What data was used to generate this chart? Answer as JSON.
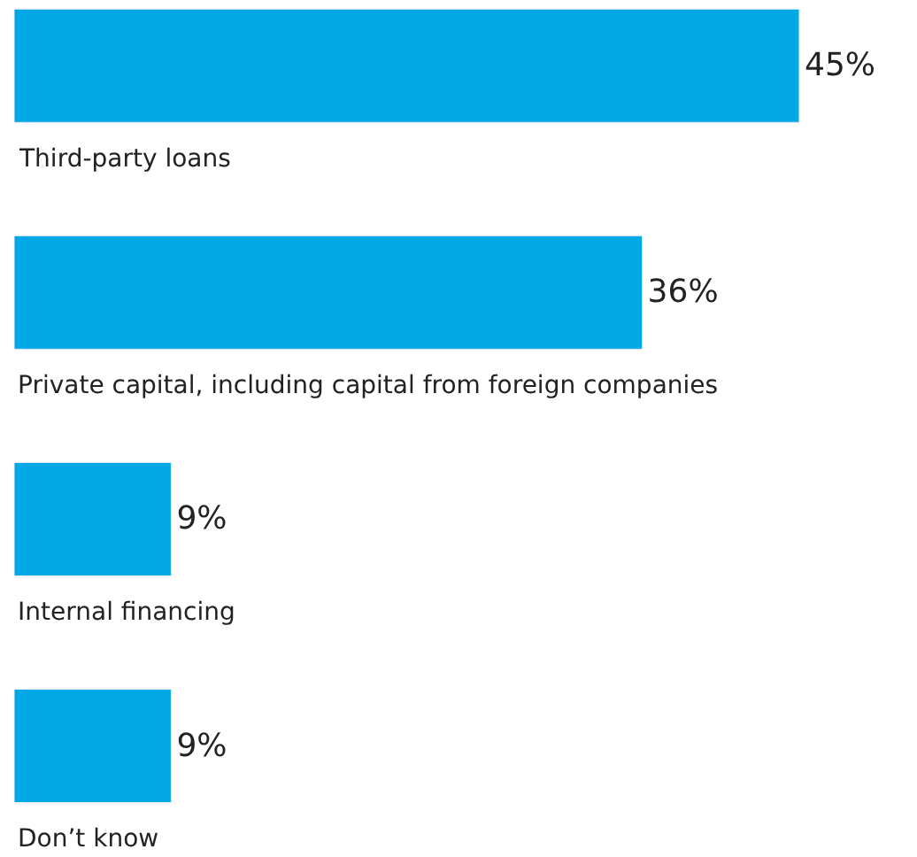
{
  "chart_data": {
    "type": "bar",
    "orientation": "horizontal",
    "categories": [
      "Third-party loans",
      "Private capital, including capital from foreign companies",
      "Internal financing",
      "Don’t know"
    ],
    "values": [
      45,
      36,
      9,
      9
    ],
    "value_labels": [
      "45%",
      "36%",
      "9%",
      "9%"
    ],
    "color": "#00a8e6"
  }
}
